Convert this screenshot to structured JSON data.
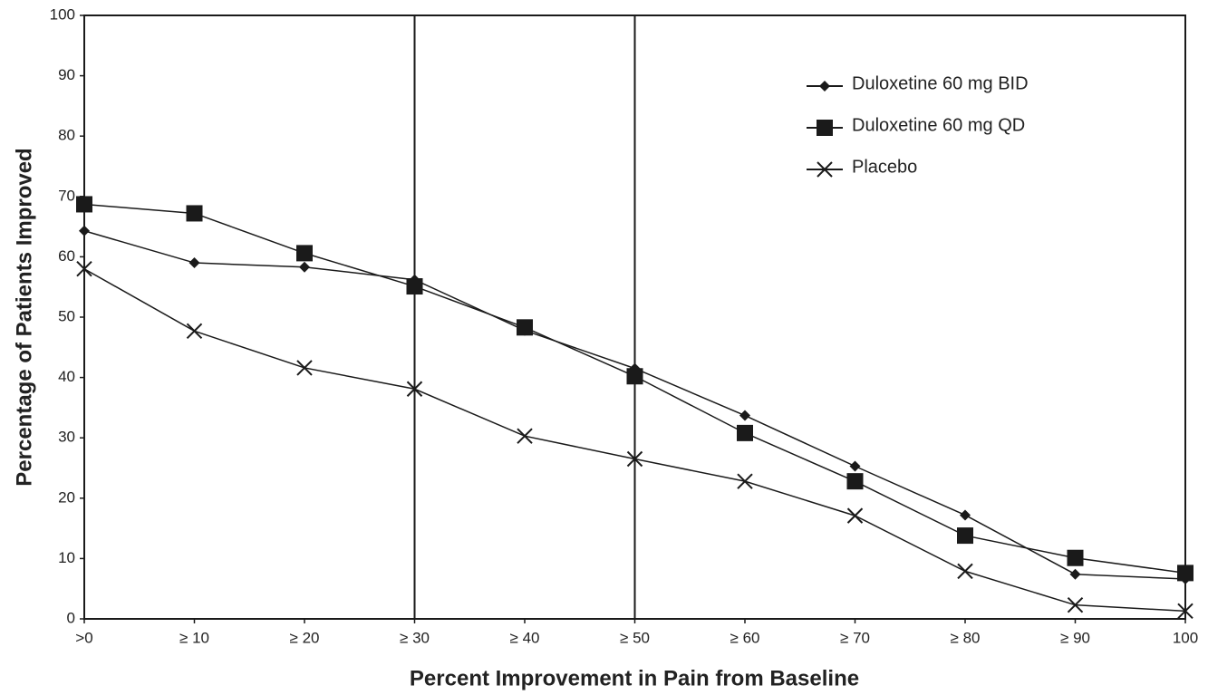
{
  "chart_data": {
    "type": "line",
    "x_label": "Percent Improvement in Pain from Baseline",
    "y_label": "Percentage of Patients Improved",
    "categories": [
      ">0",
      "≥ 10",
      "≥ 20",
      "≥ 30",
      "≥ 40",
      "≥ 50",
      "≥ 60",
      "≥ 70",
      "≥ 80",
      "≥ 90",
      "100"
    ],
    "series": [
      {
        "name": "Duloxetine 60 mg BID",
        "color": "#1a1a1a",
        "marker": "diamond",
        "values": [
          64.3,
          59,
          58.3,
          56.2,
          47.8,
          41.5,
          33.7,
          25.3,
          17.2,
          7.4,
          6.6
        ]
      },
      {
        "name": "Duloxetine 60 mg QD",
        "color": "#1a1a1a",
        "marker": "square",
        "values": [
          68.7,
          67.2,
          60.6,
          55.1,
          48.3,
          40.2,
          30.8,
          22.8,
          13.8,
          10.1,
          7.6
        ]
      },
      {
        "name": "Placebo",
        "color": "#1a1a1a",
        "marker": "x",
        "values": [
          58,
          47.7,
          41.6,
          38.1,
          30.3,
          26.5,
          22.8,
          17.1,
          7.9,
          2.3,
          1.3
        ]
      }
    ],
    "reference_lines": [
      "≥ 30",
      "≥ 50"
    ],
    "ylim": [
      0,
      100
    ],
    "yticks": [
      0,
      10,
      20,
      30,
      40,
      50,
      60,
      70,
      80,
      90,
      100
    ],
    "grid": false,
    "legend": "upper right"
  }
}
